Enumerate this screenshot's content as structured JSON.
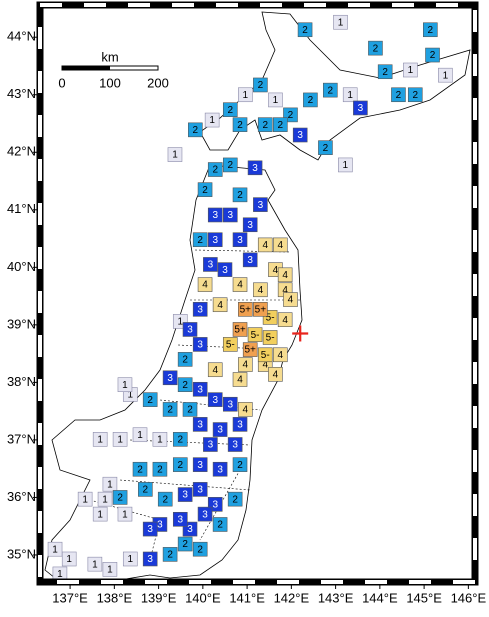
{
  "map": {
    "xlim": [
      136.32,
      146.15
    ],
    "ylim": [
      34.53,
      44.56
    ],
    "lon_ticks": [
      {
        "value": 137,
        "label": "137°E"
      },
      {
        "value": 138,
        "label": "138°E"
      },
      {
        "value": 139,
        "label": "139°E"
      },
      {
        "value": 140,
        "label": "140°E"
      },
      {
        "value": 141,
        "label": "141°E"
      },
      {
        "value": 142,
        "label": "142°E"
      },
      {
        "value": 143,
        "label": "143°E"
      },
      {
        "value": 144,
        "label": "144°E"
      },
      {
        "value": 145,
        "label": "145°E"
      },
      {
        "value": 146,
        "label": "146°E"
      }
    ],
    "lat_ticks": [
      {
        "value": 35,
        "label": "35°N"
      },
      {
        "value": 36,
        "label": "36°N"
      },
      {
        "value": 37,
        "label": "37°N"
      },
      {
        "value": 38,
        "label": "38°N"
      },
      {
        "value": 39,
        "label": "39°N"
      },
      {
        "value": 40,
        "label": "40°N"
      },
      {
        "value": 41,
        "label": "41°N"
      },
      {
        "value": 42,
        "label": "42°N"
      },
      {
        "value": 43,
        "label": "43°N"
      },
      {
        "value": 44,
        "label": "44°N"
      }
    ],
    "scale": {
      "unit": "km",
      "ticks": [
        0,
        100,
        200
      ]
    },
    "epicenter": {
      "lon": 142.2,
      "lat": 38.85,
      "color": "#e8241c"
    },
    "intensity_colors": {
      "1": "#e6e6f2",
      "2": "#1fa0e0",
      "3": "#1a3ad8",
      "4": "#f6dc90",
      "5-": "#f2cf5e",
      "5+": "#f0a050"
    },
    "stations": [
      {
        "lon": 142.31,
        "lat": 44.13,
        "label": "2"
      },
      {
        "lon": 143.11,
        "lat": 44.26,
        "label": "1"
      },
      {
        "lon": 143.9,
        "lat": 43.81,
        "label": "2"
      },
      {
        "lon": 145.14,
        "lat": 44.13,
        "label": "2"
      },
      {
        "lon": 145.19,
        "lat": 43.69,
        "label": "2"
      },
      {
        "lon": 144.69,
        "lat": 43.43,
        "label": "1"
      },
      {
        "lon": 145.48,
        "lat": 43.34,
        "label": "1"
      },
      {
        "lon": 144.12,
        "lat": 43.4,
        "label": "2"
      },
      {
        "lon": 144.42,
        "lat": 43.0,
        "label": "2"
      },
      {
        "lon": 144.8,
        "lat": 43.0,
        "label": "2"
      },
      {
        "lon": 143.33,
        "lat": 43.0,
        "label": "1"
      },
      {
        "lon": 143.56,
        "lat": 42.77,
        "label": "3"
      },
      {
        "lon": 142.88,
        "lat": 43.08,
        "label": "2"
      },
      {
        "lon": 142.43,
        "lat": 42.91,
        "label": "2"
      },
      {
        "lon": 141.98,
        "lat": 42.65,
        "label": "2"
      },
      {
        "lon": 141.64,
        "lat": 42.91,
        "label": "1"
      },
      {
        "lon": 141.3,
        "lat": 43.17,
        "label": "2"
      },
      {
        "lon": 140.96,
        "lat": 43.0,
        "label": "1"
      },
      {
        "lon": 140.62,
        "lat": 42.74,
        "label": "2"
      },
      {
        "lon": 140.84,
        "lat": 42.48,
        "label": "2"
      },
      {
        "lon": 142.2,
        "lat": 42.3,
        "label": "3"
      },
      {
        "lon": 142.77,
        "lat": 42.08,
        "label": "2"
      },
      {
        "lon": 143.22,
        "lat": 41.78,
        "label": "1"
      },
      {
        "lon": 139.83,
        "lat": 42.39,
        "label": "2"
      },
      {
        "lon": 140.21,
        "lat": 42.56,
        "label": "1"
      },
      {
        "lon": 139.37,
        "lat": 41.96,
        "label": "1"
      },
      {
        "lon": 141.41,
        "lat": 42.48,
        "label": "2"
      },
      {
        "lon": 141.75,
        "lat": 42.48,
        "label": "2"
      },
      {
        "lon": 140.28,
        "lat": 41.7,
        "label": "2"
      },
      {
        "lon": 140.62,
        "lat": 41.78,
        "label": "2"
      },
      {
        "lon": 141.18,
        "lat": 41.73,
        "label": "3"
      },
      {
        "lon": 140.05,
        "lat": 41.35,
        "label": "2"
      },
      {
        "lon": 140.84,
        "lat": 41.26,
        "label": "2"
      },
      {
        "lon": 141.3,
        "lat": 41.09,
        "label": "3"
      },
      {
        "lon": 140.62,
        "lat": 40.91,
        "label": "3"
      },
      {
        "lon": 140.28,
        "lat": 40.91,
        "label": "3"
      },
      {
        "lon": 141.07,
        "lat": 40.74,
        "label": "3"
      },
      {
        "lon": 139.94,
        "lat": 40.48,
        "label": "2"
      },
      {
        "lon": 140.28,
        "lat": 40.48,
        "label": "3"
      },
      {
        "lon": 140.84,
        "lat": 40.48,
        "label": "3"
      },
      {
        "lon": 141.41,
        "lat": 40.39,
        "label": "4"
      },
      {
        "lon": 141.75,
        "lat": 40.39,
        "label": "4"
      },
      {
        "lon": 140.17,
        "lat": 40.05,
        "label": "3"
      },
      {
        "lon": 140.5,
        "lat": 39.96,
        "label": "3"
      },
      {
        "lon": 141.07,
        "lat": 40.13,
        "label": "3"
      },
      {
        "lon": 141.64,
        "lat": 39.96,
        "label": "4"
      },
      {
        "lon": 141.86,
        "lat": 39.87,
        "label": "4"
      },
      {
        "lon": 140.05,
        "lat": 39.7,
        "label": "4"
      },
      {
        "lon": 140.84,
        "lat": 39.7,
        "label": "4"
      },
      {
        "lon": 141.3,
        "lat": 39.61,
        "label": "4"
      },
      {
        "lon": 141.86,
        "lat": 39.61,
        "label": "4"
      },
      {
        "lon": 141.98,
        "lat": 39.44,
        "label": "4"
      },
      {
        "lon": 139.94,
        "lat": 39.27,
        "label": "3"
      },
      {
        "lon": 140.39,
        "lat": 39.35,
        "label": "4"
      },
      {
        "lon": 140.96,
        "lat": 39.27,
        "label": "5+"
      },
      {
        "lon": 141.3,
        "lat": 39.27,
        "label": "5+"
      },
      {
        "lon": 141.52,
        "lat": 39.13,
        "label": "5-"
      },
      {
        "lon": 141.86,
        "lat": 39.09,
        "label": "4"
      },
      {
        "lon": 140.84,
        "lat": 38.92,
        "label": "5+"
      },
      {
        "lon": 141.18,
        "lat": 38.83,
        "label": "5-"
      },
      {
        "lon": 141.52,
        "lat": 38.78,
        "label": "5-"
      },
      {
        "lon": 140.62,
        "lat": 38.66,
        "label": "5-"
      },
      {
        "lon": 141.07,
        "lat": 38.57,
        "label": "5+"
      },
      {
        "lon": 141.41,
        "lat": 38.48,
        "label": "5-"
      },
      {
        "lon": 141.75,
        "lat": 38.48,
        "label": "4"
      },
      {
        "lon": 140.96,
        "lat": 38.31,
        "label": "4"
      },
      {
        "lon": 141.41,
        "lat": 38.31,
        "label": "4"
      },
      {
        "lon": 141.64,
        "lat": 38.14,
        "label": "4"
      },
      {
        "lon": 140.84,
        "lat": 38.05,
        "label": "4"
      },
      {
        "lon": 140.28,
        "lat": 38.22,
        "label": "4"
      },
      {
        "lon": 139.94,
        "lat": 38.66,
        "label": "3"
      },
      {
        "lon": 139.6,
        "lat": 38.4,
        "label": "2"
      },
      {
        "lon": 139.71,
        "lat": 38.92,
        "label": "3"
      },
      {
        "lon": 139.49,
        "lat": 39.06,
        "label": "1"
      },
      {
        "lon": 139.26,
        "lat": 38.08,
        "label": "3"
      },
      {
        "lon": 139.6,
        "lat": 37.96,
        "label": "2"
      },
      {
        "lon": 139.94,
        "lat": 37.88,
        "label": "3"
      },
      {
        "lon": 140.28,
        "lat": 37.7,
        "label": "3"
      },
      {
        "lon": 140.62,
        "lat": 37.62,
        "label": "3"
      },
      {
        "lon": 140.96,
        "lat": 37.53,
        "label": "4"
      },
      {
        "lon": 139.71,
        "lat": 37.53,
        "label": "2"
      },
      {
        "lon": 139.26,
        "lat": 37.53,
        "label": "2"
      },
      {
        "lon": 138.81,
        "lat": 37.7,
        "label": "2"
      },
      {
        "lon": 138.36,
        "lat": 37.79,
        "label": "1"
      },
      {
        "lon": 138.24,
        "lat": 37.96,
        "label": "1"
      },
      {
        "lon": 139.94,
        "lat": 37.27,
        "label": "3"
      },
      {
        "lon": 140.39,
        "lat": 37.18,
        "label": "3"
      },
      {
        "lon": 140.84,
        "lat": 37.27,
        "label": "3"
      },
      {
        "lon": 140.17,
        "lat": 36.92,
        "label": "3"
      },
      {
        "lon": 140.73,
        "lat": 36.92,
        "label": "3"
      },
      {
        "lon": 139.49,
        "lat": 37.01,
        "label": "2"
      },
      {
        "lon": 139.03,
        "lat": 37.01,
        "label": "1"
      },
      {
        "lon": 138.58,
        "lat": 37.09,
        "label": "1"
      },
      {
        "lon": 138.13,
        "lat": 37.01,
        "label": "1"
      },
      {
        "lon": 137.68,
        "lat": 37.01,
        "label": "1"
      },
      {
        "lon": 139.94,
        "lat": 36.57,
        "label": "3"
      },
      {
        "lon": 140.39,
        "lat": 36.49,
        "label": "3"
      },
      {
        "lon": 140.84,
        "lat": 36.57,
        "label": "2"
      },
      {
        "lon": 139.49,
        "lat": 36.57,
        "label": "2"
      },
      {
        "lon": 139.03,
        "lat": 36.49,
        "label": "2"
      },
      {
        "lon": 138.58,
        "lat": 36.49,
        "label": "2"
      },
      {
        "lon": 139.94,
        "lat": 36.14,
        "label": "3"
      },
      {
        "lon": 140.28,
        "lat": 35.88,
        "label": "3"
      },
      {
        "lon": 140.73,
        "lat": 35.97,
        "label": "2"
      },
      {
        "lon": 139.6,
        "lat": 36.05,
        "label": "3"
      },
      {
        "lon": 139.15,
        "lat": 35.97,
        "label": "2"
      },
      {
        "lon": 138.7,
        "lat": 36.14,
        "label": "2"
      },
      {
        "lon": 138.13,
        "lat": 36.0,
        "label": "2"
      },
      {
        "lon": 137.9,
        "lat": 36.23,
        "label": "1"
      },
      {
        "lon": 140.05,
        "lat": 35.71,
        "label": "3"
      },
      {
        "lon": 140.39,
        "lat": 35.53,
        "label": "2"
      },
      {
        "lon": 139.71,
        "lat": 35.45,
        "label": "3"
      },
      {
        "lon": 139.49,
        "lat": 35.62,
        "label": "3"
      },
      {
        "lon": 139.03,
        "lat": 35.53,
        "label": "3"
      },
      {
        "lon": 138.81,
        "lat": 35.45,
        "label": "3"
      },
      {
        "lon": 138.24,
        "lat": 35.71,
        "label": "1"
      },
      {
        "lon": 137.68,
        "lat": 35.71,
        "label": "1"
      },
      {
        "lon": 139.6,
        "lat": 35.19,
        "label": "2"
      },
      {
        "lon": 139.94,
        "lat": 35.1,
        "label": "2"
      },
      {
        "lon": 139.26,
        "lat": 35.01,
        "label": "2"
      },
      {
        "lon": 138.81,
        "lat": 34.93,
        "label": "3"
      },
      {
        "lon": 138.36,
        "lat": 34.93,
        "label": "1"
      },
      {
        "lon": 137.9,
        "lat": 34.75,
        "label": "1"
      },
      {
        "lon": 137.56,
        "lat": 34.84,
        "label": "1"
      },
      {
        "lon": 136.98,
        "lat": 34.93,
        "label": "1"
      },
      {
        "lon": 136.66,
        "lat": 35.1,
        "label": "1"
      },
      {
        "lon": 136.77,
        "lat": 34.67,
        "label": "1"
      },
      {
        "lon": 137.34,
        "lat": 35.97,
        "label": "1"
      },
      {
        "lon": 137.79,
        "lat": 35.97,
        "label": "1"
      }
    ]
  }
}
